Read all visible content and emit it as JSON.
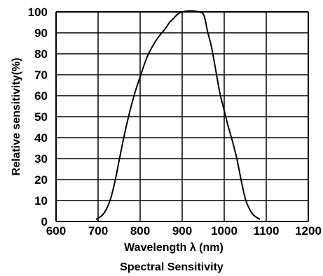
{
  "chart_data": {
    "type": "line",
    "title": "Spectral Sensitivity",
    "xlabel": "Wavelength λ (nm)",
    "ylabel": "Relative sensitivity(%)",
    "xlim": [
      600,
      1200
    ],
    "ylim": [
      0,
      100
    ],
    "x_ticks": [
      600,
      700,
      800,
      900,
      1000,
      1100,
      1200
    ],
    "y_ticks": [
      0,
      10,
      20,
      30,
      40,
      50,
      60,
      70,
      80,
      90,
      100
    ],
    "x_tick_labels": [
      "600",
      "700",
      "800",
      "900",
      "1000",
      "1100",
      "1200"
    ],
    "y_tick_labels": [
      "0",
      "10",
      "20",
      "30",
      "40",
      "50",
      "60",
      "70",
      "80",
      "90",
      "100"
    ],
    "grid": true,
    "line_color": "#000000",
    "series": [
      {
        "values": [
          [
            695,
            1
          ],
          [
            710,
            3
          ],
          [
            720,
            6
          ],
          [
            730,
            11
          ],
          [
            740,
            19
          ],
          [
            750,
            29
          ],
          [
            760,
            39
          ],
          [
            770,
            48
          ],
          [
            780,
            56
          ],
          [
            790,
            63
          ],
          [
            800,
            69
          ],
          [
            810,
            75
          ],
          [
            820,
            80
          ],
          [
            840,
            87
          ],
          [
            860,
            92
          ],
          [
            870,
            95
          ],
          [
            880,
            97
          ],
          [
            890,
            99
          ],
          [
            900,
            100
          ],
          [
            920,
            100.5
          ],
          [
            940,
            100
          ],
          [
            950,
            99
          ],
          [
            955,
            96
          ],
          [
            960,
            91
          ],
          [
            970,
            83
          ],
          [
            980,
            72
          ],
          [
            990,
            61
          ],
          [
            1000,
            53
          ],
          [
            1010,
            45
          ],
          [
            1020,
            38
          ],
          [
            1030,
            30
          ],
          [
            1040,
            20
          ],
          [
            1050,
            11
          ],
          [
            1060,
            6
          ],
          [
            1070,
            3
          ],
          [
            1085,
            1
          ]
        ]
      }
    ]
  }
}
